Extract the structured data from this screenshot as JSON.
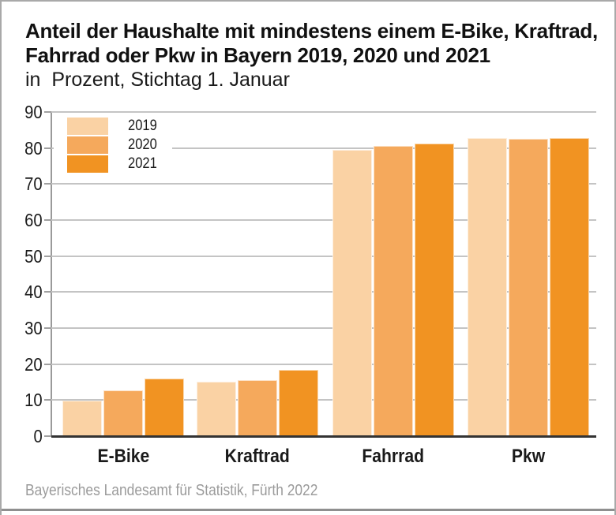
{
  "title": {
    "line1": "Anteil der Haushalte mit mindestens einem E-Bike, Kraftrad,",
    "line2": "Fahrrad oder Pkw in Bayern 2019, 2020 und 2021",
    "subtitle": "in  Prozent, Stichtag 1. Januar"
  },
  "footer": {
    "source": "Bayerisches Landesamt für Statistik, Fürth 2022"
  },
  "chart_data": {
    "type": "bar",
    "title": "Anteil der Haushalte mit mindestens einem E-Bike, Kraftrad, Fahrrad oder Pkw in Bayern 2019, 2020 und 2021",
    "subtitle": "in Prozent, Stichtag 1. Januar",
    "categories": [
      "E-Bike",
      "Kraftrad",
      "Fahrrad",
      "Pkw"
    ],
    "series": [
      {
        "name": "2019",
        "color": "#FAD2A4",
        "values": [
          9.8,
          15.2,
          79.4,
          82.8
        ]
      },
      {
        "name": "2020",
        "color": "#F5A95C",
        "values": [
          12.7,
          15.5,
          80.5,
          82.5
        ]
      },
      {
        "name": "2021",
        "color": "#F19322",
        "values": [
          15.9,
          18.4,
          81.3,
          82.7
        ]
      }
    ],
    "xlabel": "",
    "ylabel": "",
    "ylim": [
      0,
      90
    ],
    "yticks": [
      0,
      10,
      20,
      30,
      40,
      50,
      60,
      70,
      80,
      90
    ],
    "grid": true,
    "legend_position": "top-left"
  },
  "style": {
    "grid_color": "#c4c4c4",
    "axis_color": "#9a9a9a",
    "baseline_color": "#333333",
    "text_color": "#1a1a1a",
    "footer_color": "#9b9b9b",
    "frame_color": "#a9a9a9"
  }
}
